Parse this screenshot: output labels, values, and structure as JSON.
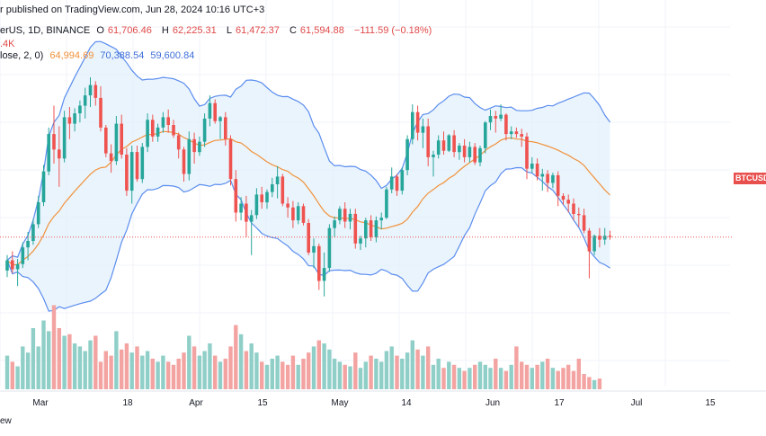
{
  "header": {
    "published": "r published on TradingView.com, Jun 28, 2024 10:16 UTC+3",
    "symbol": "erUS, 1D, BINANCE",
    "open_label": "O",
    "open": "61,706.46",
    "high_label": "H",
    "high": "62,225.31",
    "low_label": "L",
    "low": "61,472.37",
    "close_label": "C",
    "close": "61,594.88",
    "change": "−111.59 (−0.18%)",
    "volume": ".4K",
    "bb_label": "lose, 2, 0)",
    "bb_basis": "64,994.69",
    "bb_upper": "70,388.54",
    "bb_lower": "59,600.84"
  },
  "price_tag": "BTCUSDT",
  "watermark_text": "ew",
  "colors": {
    "up": "#26a69a",
    "down": "#ef5350",
    "vol_up": "#8fcfc8",
    "vol_down": "#f3a3a1",
    "bb_band": "#5b8def",
    "bb_basis": "#f0923b",
    "bb_fill": "#e3f0fb",
    "grid": "#f0f3fa",
    "last_line": "#ef5350"
  },
  "chart_data": {
    "type": "candlestick",
    "x_tick_labels": [
      "Mar",
      "18",
      "Apr",
      "15",
      "May",
      "14",
      "Jun",
      "17",
      "Jul",
      "15"
    ],
    "candles": [
      [
        59000,
        60200,
        58500,
        59800
      ],
      [
        59800,
        60500,
        58800,
        59100
      ],
      [
        59100,
        59900,
        57800,
        59500
      ],
      [
        59500,
        61200,
        59200,
        60800
      ],
      [
        60800,
        62000,
        59800,
        61300
      ],
      [
        61300,
        63000,
        61000,
        62600
      ],
      [
        62600,
        64800,
        62300,
        64300
      ],
      [
        64300,
        67200,
        64000,
        66700
      ],
      [
        66700,
        70100,
        66400,
        69600
      ],
      [
        69600,
        71800,
        67300,
        68400
      ],
      [
        68400,
        70200,
        65500,
        67700
      ],
      [
        67700,
        71400,
        67400,
        70900
      ],
      [
        70900,
        71700,
        69200,
        70400
      ],
      [
        70400,
        71600,
        69800,
        71200
      ],
      [
        71200,
        72200,
        70500,
        71800
      ],
      [
        71800,
        73200,
        70800,
        72600
      ],
      [
        72600,
        74000,
        71700,
        73400
      ],
      [
        73400,
        73700,
        71800,
        72400
      ],
      [
        72400,
        73300,
        69800,
        70100
      ],
      [
        70100,
        70300,
        67800,
        68100
      ],
      [
        68100,
        68800,
        66600,
        67500
      ],
      [
        67500,
        71000,
        67200,
        70400
      ],
      [
        70400,
        71100,
        67700,
        68000
      ],
      [
        68000,
        68500,
        64800,
        65200
      ],
      [
        65200,
        68700,
        64200,
        68200
      ],
      [
        68200,
        68700,
        65900,
        66100
      ],
      [
        66100,
        68900,
        65800,
        68600
      ],
      [
        68600,
        71200,
        68200,
        70700
      ],
      [
        70700,
        71100,
        69000,
        69400
      ],
      [
        69400,
        70400,
        69000,
        70100
      ],
      [
        70100,
        71300,
        69700,
        70900
      ],
      [
        70900,
        71500,
        69700,
        70300
      ],
      [
        70300,
        70700,
        69300,
        69500
      ],
      [
        69500,
        69700,
        67700,
        68400
      ],
      [
        68400,
        68600,
        65900,
        66500
      ],
      [
        66500,
        69800,
        66000,
        69200
      ],
      [
        69200,
        69700,
        67300,
        68200
      ],
      [
        68200,
        69400,
        67900,
        69000
      ],
      [
        69000,
        71200,
        68600,
        70800
      ],
      [
        70800,
        72600,
        70200,
        72000
      ],
      [
        72000,
        72300,
        70400,
        70600
      ],
      [
        70600,
        71000,
        69200,
        70900
      ],
      [
        70900,
        71300,
        68700,
        69200
      ],
      [
        69200,
        69500,
        65600,
        66100
      ],
      [
        66100,
        66800,
        62800,
        63500
      ],
      [
        63500,
        64700,
        62900,
        64200
      ],
      [
        64200,
        64800,
        61600,
        62800
      ],
      [
        62800,
        63700,
        60200,
        63300
      ],
      [
        63300,
        65400,
        63000,
        64900
      ],
      [
        64900,
        65500,
        63800,
        64300
      ],
      [
        64300,
        65300,
        63800,
        65100
      ],
      [
        65100,
        66200,
        64700,
        65700
      ],
      [
        65700,
        67100,
        64600,
        66300
      ],
      [
        66300,
        66500,
        64000,
        64200
      ],
      [
        64200,
        64700,
        63100,
        63900
      ],
      [
        63900,
        64400,
        62300,
        62900
      ],
      [
        62900,
        64300,
        62600,
        64000
      ],
      [
        64000,
        64200,
        62500,
        62700
      ],
      [
        62700,
        63000,
        60200,
        60400
      ],
      [
        60400,
        61500,
        59200,
        60900
      ],
      [
        60900,
        61100,
        57500,
        58200
      ],
      [
        58200,
        60400,
        57000,
        59200
      ],
      [
        59200,
        62600,
        58900,
        62300
      ],
      [
        62300,
        63200,
        61600,
        62900
      ],
      [
        62900,
        64000,
        62600,
        63800
      ],
      [
        63800,
        64300,
        62300,
        62800
      ],
      [
        62800,
        63800,
        62200,
        63400
      ],
      [
        63400,
        63800,
        60700,
        61100
      ],
      [
        61100,
        61700,
        60600,
        61500
      ],
      [
        61500,
        63100,
        60800,
        62900
      ],
      [
        62900,
        63300,
        61300,
        61600
      ],
      [
        61600,
        63200,
        61200,
        62900
      ],
      [
        62900,
        63500,
        62200,
        63100
      ],
      [
        63100,
        65500,
        63000,
        65300
      ],
      [
        65300,
        67000,
        65000,
        66300
      ],
      [
        66300,
        66500,
        64800,
        65200
      ],
      [
        65200,
        67000,
        64900,
        66800
      ],
      [
        66800,
        69500,
        66400,
        69200
      ],
      [
        69200,
        71900,
        68800,
        71300
      ],
      [
        71300,
        71800,
        69100,
        69700
      ],
      [
        69700,
        70800,
        68500,
        70200
      ],
      [
        70200,
        70800,
        67100,
        67800
      ],
      [
        67800,
        68300,
        66300,
        68000
      ],
      [
        68000,
        69500,
        67700,
        69100
      ],
      [
        69100,
        69800,
        68000,
        68300
      ],
      [
        68300,
        69600,
        68200,
        69500
      ],
      [
        69500,
        69900,
        67800,
        68200
      ],
      [
        68200,
        68900,
        67600,
        68700
      ],
      [
        68700,
        69200,
        67400,
        67800
      ],
      [
        67800,
        69000,
        67400,
        68600
      ],
      [
        68600,
        68900,
        67200,
        67400
      ],
      [
        67400,
        68700,
        67100,
        68500
      ],
      [
        68500,
        70600,
        68100,
        70500
      ],
      [
        70500,
        71500,
        69900,
        71000
      ],
      [
        71000,
        71400,
        69700,
        70800
      ],
      [
        70800,
        71900,
        70600,
        71100
      ],
      [
        71100,
        71200,
        69100,
        69600
      ],
      [
        69600,
        70200,
        69200,
        69800
      ],
      [
        69800,
        70100,
        69300,
        69600
      ],
      [
        69600,
        70000,
        68600,
        69400
      ],
      [
        69400,
        69700,
        66100,
        66900
      ],
      [
        66900,
        67800,
        66600,
        67300
      ],
      [
        67300,
        67700,
        66000,
        66300
      ],
      [
        66300,
        66900,
        65200,
        66500
      ],
      [
        66500,
        66800,
        65100,
        65800
      ],
      [
        65800,
        66600,
        65400,
        66400
      ],
      [
        66400,
        66700,
        64000,
        64800
      ],
      [
        64800,
        65000,
        64100,
        64500
      ],
      [
        64500,
        64900,
        63500,
        64200
      ],
      [
        64200,
        64600,
        62900,
        63400
      ],
      [
        63400,
        63900,
        62400,
        63300
      ],
      [
        63300,
        63800,
        61900,
        62100
      ],
      [
        62100,
        62300,
        58400,
        60500
      ],
      [
        60500,
        61800,
        60200,
        61700
      ],
      [
        61700,
        62300,
        60800,
        61400
      ],
      [
        61400,
        62300,
        61000,
        61700
      ],
      [
        61700,
        62100,
        61400,
        61600
      ]
    ],
    "volume": [
      22,
      18,
      15,
      28,
      24,
      40,
      28,
      45,
      38,
      55,
      40,
      35,
      36,
      30,
      28,
      25,
      32,
      35,
      18,
      25,
      22,
      38,
      26,
      30,
      24,
      28,
      22,
      25,
      20,
      18,
      22,
      18,
      16,
      20,
      24,
      35,
      28,
      22,
      25,
      30,
      22,
      18,
      20,
      28,
      42,
      36,
      25,
      30,
      24,
      18,
      16,
      20,
      22,
      18,
      16,
      22,
      16,
      20,
      24,
      28,
      32,
      30,
      26,
      20,
      18,
      16,
      15,
      24,
      14,
      18,
      22,
      20,
      18,
      25,
      28,
      22,
      20,
      24,
      32,
      26,
      22,
      28,
      16,
      20,
      14,
      18,
      16,
      14,
      12,
      14,
      16,
      18,
      16,
      14,
      20,
      14,
      12,
      16,
      28,
      18,
      16,
      14,
      16,
      18,
      20,
      14,
      12,
      14,
      16,
      12,
      20,
      10,
      8,
      6,
      7
    ],
    "bollinger": {
      "length": 20,
      "mult": 2,
      "basis_color": "orange",
      "band_color": "blue"
    },
    "last_price": 61594.88
  }
}
